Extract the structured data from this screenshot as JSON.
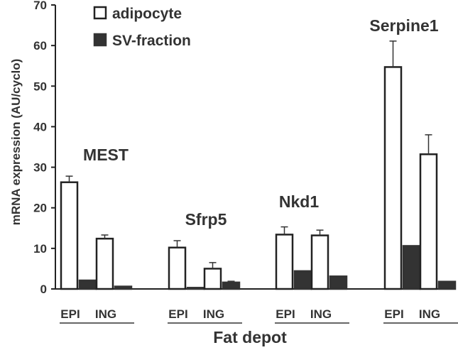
{
  "chart_data": {
    "type": "bar",
    "xlabel": "Fat depot",
    "ylabel": "mRNA expression (AU/cyclo)",
    "ylim": [
      0,
      70
    ],
    "yticks": [
      0,
      10,
      20,
      30,
      40,
      50,
      60,
      70
    ],
    "grid": false,
    "legend": {
      "placement": "top-left"
    },
    "series": [
      {
        "name": "adipocyte",
        "color": "#ffffff",
        "edge": "#222222"
      },
      {
        "name": "SV-fraction",
        "color": "#333333",
        "edge": "#333333"
      }
    ],
    "groups": [
      {
        "label": "MEST",
        "depots": [
          {
            "label": "EPI",
            "values": [
              26.3,
              2.1
            ],
            "errors": [
              1.5,
              0
            ]
          },
          {
            "label": "ING",
            "values": [
              12.4,
              0.6
            ],
            "errors": [
              0.9,
              0
            ]
          }
        ]
      },
      {
        "label": "Sfrp5",
        "depots": [
          {
            "label": "EPI",
            "values": [
              10.2,
              0.3
            ],
            "errors": [
              1.7,
              0
            ]
          },
          {
            "label": "ING",
            "values": [
              5.0,
              1.6
            ],
            "errors": [
              1.5,
              0.3
            ]
          }
        ]
      },
      {
        "label": "Nkd1",
        "depots": [
          {
            "label": "EPI",
            "values": [
              13.4,
              4.4
            ],
            "errors": [
              1.9,
              0
            ]
          },
          {
            "label": "ING",
            "values": [
              13.2,
              3.1
            ],
            "errors": [
              1.3,
              0
            ]
          }
        ]
      },
      {
        "label": "Serpine1",
        "depots": [
          {
            "label": "EPI",
            "values": [
              54.7,
              10.6
            ],
            "errors": [
              6.4,
              0
            ]
          },
          {
            "label": "ING",
            "values": [
              33.2,
              1.8
            ],
            "errors": [
              4.8,
              0
            ]
          }
        ]
      }
    ]
  }
}
